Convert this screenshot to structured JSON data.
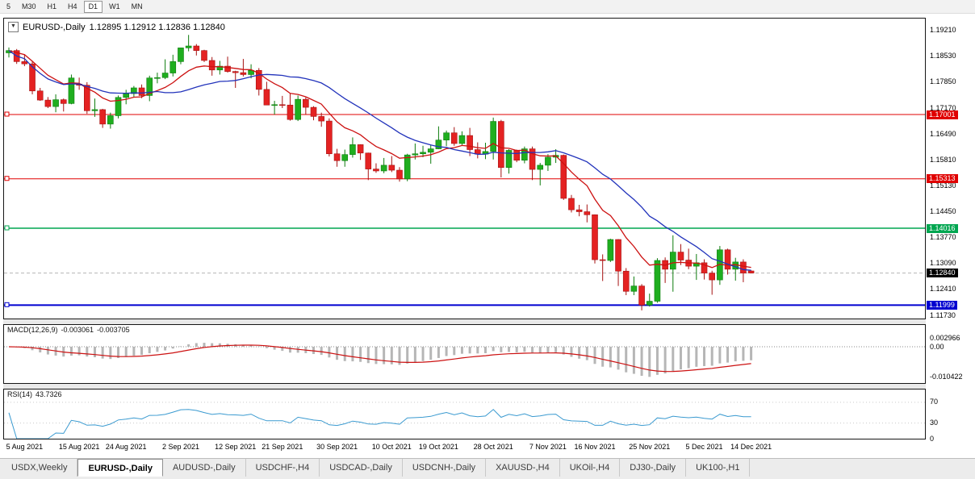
{
  "toolbar": {
    "timeframes": [
      "5",
      "M30",
      "H1",
      "H4",
      "D1",
      "W1",
      "MN"
    ],
    "active": "D1"
  },
  "chart_header": {
    "symbol": "EURUSD-,Daily",
    "ohlc": "1.12895 1.12912 1.12836 1.12840",
    "dropdown_icon": "▼"
  },
  "price_axis": {
    "labels": [
      "1.19210",
      "1.18530",
      "1.17850",
      "1.17170",
      "1.16490",
      "1.15810",
      "1.15130",
      "1.14450",
      "1.13770",
      "1.13090",
      "1.12410",
      "1.11730"
    ],
    "markers": [
      {
        "text": "1.17001",
        "value": 1.17001,
        "color": "#e00000"
      },
      {
        "text": "1.15313",
        "value": 1.15313,
        "color": "#e00000"
      },
      {
        "text": "1.14016",
        "value": 1.14016,
        "color": "#00a650"
      },
      {
        "text": "1.12840",
        "value": 1.1284,
        "color": "#000000"
      },
      {
        "text": "1.11999",
        "value": 1.11999,
        "color": "#0000d0"
      }
    ]
  },
  "levels": [
    {
      "value": 1.17001,
      "color": "#e00000",
      "width": 1
    },
    {
      "value": 1.15313,
      "color": "#e00000",
      "width": 1
    },
    {
      "value": 1.14016,
      "color": "#00a650",
      "width": 1.5
    },
    {
      "value": 1.11999,
      "color": "#0000d0",
      "width": 2
    }
  ],
  "bid_line": {
    "value": 1.1284,
    "color": "#b5b5b5"
  },
  "chart_data": {
    "type": "candlestick",
    "title": "EURUSD-,Daily",
    "up_color": "#1fae1f",
    "down_color": "#e42222",
    "ma_fast_color": "#cc1111",
    "ma_slow_color": "#2233bb",
    "y_range": [
      1.11646,
      1.1952
    ],
    "ohlc": [
      [
        1.1862,
        1.1876,
        1.185,
        1.1868
      ],
      [
        1.1868,
        1.1872,
        1.1833,
        1.1839
      ],
      [
        1.1839,
        1.1857,
        1.1827,
        1.1833
      ],
      [
        1.1833,
        1.184,
        1.1753,
        1.1762
      ],
      [
        1.1762,
        1.177,
        1.1736,
        1.1738
      ],
      [
        1.1738,
        1.1746,
        1.1717,
        1.1721
      ],
      [
        1.1721,
        1.1753,
        1.1706,
        1.1739
      ],
      [
        1.1739,
        1.1742,
        1.1708,
        1.1729
      ],
      [
        1.1729,
        1.1805,
        1.1727,
        1.1796
      ],
      [
        1.178,
        1.1797,
        1.1765,
        1.1777
      ],
      [
        1.1777,
        1.1785,
        1.1702,
        1.171
      ],
      [
        1.171,
        1.1742,
        1.1694,
        1.1713
      ],
      [
        1.1713,
        1.1715,
        1.1665,
        1.1675
      ],
      [
        1.1675,
        1.1705,
        1.1663,
        1.1697
      ],
      [
        1.1697,
        1.175,
        1.169,
        1.1745
      ],
      [
        1.1745,
        1.1765,
        1.1727,
        1.1755
      ],
      [
        1.1755,
        1.1775,
        1.1745,
        1.177
      ],
      [
        1.177,
        1.1779,
        1.1743,
        1.175
      ],
      [
        1.175,
        1.1802,
        1.1735,
        1.1796
      ],
      [
        1.1796,
        1.181,
        1.1782,
        1.1797
      ],
      [
        1.1797,
        1.1845,
        1.1793,
        1.1809
      ],
      [
        1.1809,
        1.1857,
        1.18,
        1.1839
      ],
      [
        1.1839,
        1.1875,
        1.1832,
        1.1875
      ],
      [
        1.1875,
        1.1909,
        1.1866,
        1.188
      ],
      [
        1.188,
        1.1885,
        1.1855,
        1.1868
      ],
      [
        1.1868,
        1.187,
        1.1838,
        1.1842
      ],
      [
        1.1842,
        1.1851,
        1.1802,
        1.1817
      ],
      [
        1.1817,
        1.1841,
        1.1805,
        1.1827
      ],
      [
        1.1827,
        1.1852,
        1.181,
        1.1813
      ],
      [
        1.1813,
        1.1815,
        1.177,
        1.181
      ],
      [
        1.181,
        1.1846,
        1.18,
        1.1805
      ],
      [
        1.1805,
        1.1832,
        1.1795,
        1.1816
      ],
      [
        1.1816,
        1.1822,
        1.175,
        1.1766
      ],
      [
        1.1766,
        1.1786,
        1.1725,
        1.1725
      ],
      [
        1.1725,
        1.1736,
        1.17,
        1.1726
      ],
      [
        1.1726,
        1.1749,
        1.1717,
        1.1725
      ],
      [
        1.1725,
        1.1756,
        1.1684,
        1.1687
      ],
      [
        1.1687,
        1.175,
        1.1683,
        1.174
      ],
      [
        1.174,
        1.1745,
        1.1701,
        1.1719
      ],
      [
        1.1719,
        1.1722,
        1.1685,
        1.1695
      ],
      [
        1.1695,
        1.1705,
        1.1668,
        1.1683
      ],
      [
        1.1683,
        1.169,
        1.159,
        1.1597
      ],
      [
        1.1597,
        1.161,
        1.1563,
        1.1579
      ],
      [
        1.1579,
        1.1608,
        1.1563,
        1.1595
      ],
      [
        1.1595,
        1.164,
        1.1587,
        1.1621
      ],
      [
        1.1621,
        1.1622,
        1.1581,
        1.1599
      ],
      [
        1.1599,
        1.16,
        1.1528,
        1.1557
      ],
      [
        1.1557,
        1.1572,
        1.1547,
        1.1552
      ],
      [
        1.1552,
        1.1586,
        1.1546,
        1.1567
      ],
      [
        1.1567,
        1.1591,
        1.1549,
        1.1554
      ],
      [
        1.1554,
        1.1562,
        1.1524,
        1.1531
      ],
      [
        1.1531,
        1.1597,
        1.1525,
        1.1594
      ],
      [
        1.1594,
        1.1624,
        1.1582,
        1.1597
      ],
      [
        1.1597,
        1.1618,
        1.1588,
        1.1601
      ],
      [
        1.1601,
        1.1621,
        1.1571,
        1.161
      ],
      [
        1.161,
        1.1669,
        1.1609,
        1.1633
      ],
      [
        1.1633,
        1.1658,
        1.1617,
        1.1652
      ],
      [
        1.1652,
        1.1667,
        1.1618,
        1.1624
      ],
      [
        1.1624,
        1.1656,
        1.162,
        1.1645
      ],
      [
        1.1645,
        1.1665,
        1.1591,
        1.1608
      ],
      [
        1.1608,
        1.1627,
        1.1585,
        1.1596
      ],
      [
        1.1596,
        1.1626,
        1.1583,
        1.1603
      ],
      [
        1.1603,
        1.1692,
        1.1582,
        1.1682
      ],
      [
        1.1682,
        1.1686,
        1.1535,
        1.1561
      ],
      [
        1.1561,
        1.1609,
        1.1545,
        1.1606
      ],
      [
        1.1606,
        1.1608,
        1.1575,
        1.158
      ],
      [
        1.158,
        1.1616,
        1.1572,
        1.161
      ],
      [
        1.161,
        1.1616,
        1.1528,
        1.1556
      ],
      [
        1.1556,
        1.1573,
        1.1514,
        1.1567
      ],
      [
        1.1567,
        1.1596,
        1.1552,
        1.1588
      ],
      [
        1.1588,
        1.1609,
        1.1573,
        1.1593
      ],
      [
        1.1593,
        1.1595,
        1.1476,
        1.148
      ],
      [
        1.148,
        1.1489,
        1.1443,
        1.145
      ],
      [
        1.145,
        1.1463,
        1.1433,
        1.1445
      ],
      [
        1.1445,
        1.1464,
        1.1417,
        1.1437
      ],
      [
        1.1437,
        1.1438,
        1.1309,
        1.1319
      ],
      [
        1.1319,
        1.1333,
        1.1263,
        1.1317
      ],
      [
        1.1317,
        1.1374,
        1.1313,
        1.1372
      ],
      [
        1.1372,
        1.1373,
        1.125,
        1.1289
      ],
      [
        1.1289,
        1.1297,
        1.1226,
        1.1236
      ],
      [
        1.1236,
        1.1275,
        1.1226,
        1.125
      ],
      [
        1.125,
        1.1255,
        1.1186,
        1.12
      ],
      [
        1.12,
        1.123,
        1.1196,
        1.121
      ],
      [
        1.121,
        1.1323,
        1.1206,
        1.1317
      ],
      [
        1.1317,
        1.1325,
        1.1258,
        1.1294
      ],
      [
        1.1294,
        1.1383,
        1.1235,
        1.1339
      ],
      [
        1.1339,
        1.136,
        1.1305,
        1.1318
      ],
      [
        1.1318,
        1.1348,
        1.1294,
        1.1302
      ],
      [
        1.1302,
        1.1334,
        1.1266,
        1.1311
      ],
      [
        1.1311,
        1.132,
        1.1267,
        1.1284
      ],
      [
        1.1284,
        1.129,
        1.1227,
        1.1266
      ],
      [
        1.1266,
        1.1355,
        1.1253,
        1.1345
      ],
      [
        1.1345,
        1.1348,
        1.128,
        1.1294
      ],
      [
        1.1294,
        1.1324,
        1.1264,
        1.1313
      ],
      [
        1.1313,
        1.132,
        1.126,
        1.1284
      ],
      [
        1.12895,
        1.12912,
        1.12836,
        1.1284
      ]
    ],
    "tick_indices": [
      2,
      9,
      15,
      22,
      29,
      35,
      42,
      49,
      55,
      62,
      69,
      75,
      82,
      89,
      95
    ],
    "tick_labels": [
      "5 Aug 2021",
      "15 Aug 2021",
      "24 Aug 2021",
      "2 Sep 2021",
      "12 Sep 2021",
      "21 Sep 2021",
      "30 Sep 2021",
      "10 Oct 2021",
      "19 Oct 2021",
      "28 Oct 2021",
      "7 Nov 2021",
      "16 Nov 2021",
      "25 Nov 2021",
      "5 Dec 2021",
      "14 Dec 2021"
    ]
  },
  "macd": {
    "name": "MACD(12,26,9)",
    "value1": "-0.003061",
    "value2": "-0.003705",
    "axis_labels": [
      {
        "text": "0.002966",
        "value": 0.002966
      },
      {
        "text": "0.00",
        "value": 0
      },
      {
        "text": "-0.010422",
        "value": -0.010422
      }
    ],
    "histogram_color": "#b6b6b6",
    "signal_color": "#cc1111"
  },
  "rsi": {
    "name": "RSI(14)",
    "value": "43.7326",
    "period": 14,
    "line_color": "#3a9ad0",
    "levels": [
      70,
      30
    ],
    "axis_labels": [
      {
        "text": "70",
        "value": 70
      },
      {
        "text": "30",
        "value": 30
      },
      {
        "text": "0",
        "value": 0
      }
    ]
  },
  "tabs": {
    "items": [
      "USDX,Weekly",
      "EURUSD-,Daily",
      "AUDUSD-,Daily",
      "USDCHF-,H4",
      "USDCAD-,Daily",
      "USDCNH-,Daily",
      "XAUUSD-,H4",
      "UKOil-,H4",
      "DJ30-,Daily",
      "UK100-,H1"
    ],
    "active": "EURUSD-,Daily"
  }
}
